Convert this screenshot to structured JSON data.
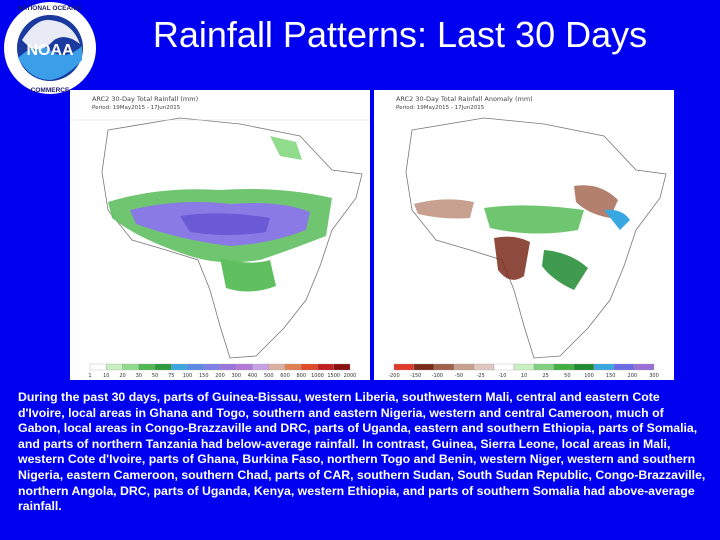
{
  "slide": {
    "title": "Rainfall Patterns: Last 30 Days",
    "logo_text": "NOAA",
    "caption": "During the past 30 days, parts of Guinea-Bissau, western Liberia, southwestern Mali, central and eastern Cote d'Ivoire, local areas in Ghana  and Togo, southern and eastern Nigeria, western and central Cameroon, much of Gabon, local areas in Congo-Brazzaville and DRC, parts of Uganda, eastern and southern Ethiopia, parts of Somalia, and parts of northern Tanzania had below-average rainfall. In contrast, Guinea, Sierra Leone, local areas in Mali, western Cote d'Ivoire, parts of Ghana, Burkina Faso, northern Togo and Benin, western Niger, western and southern Nigeria, eastern Cameroon, southern Chad, parts of CAR, southern Sudan, South Sudan Republic, Congo-Brazzaville, northern Angola, DRC, parts of Uganda, Kenya, western Ethiopia, and parts of southern Somalia had above-average rainfall."
  },
  "maps": {
    "left": {
      "title": "ARC2 30-Day Total Rainfall (mm)",
      "period": "Period: 19May2015 - 17Jun2015",
      "legend": [
        "1",
        "10",
        "20",
        "30",
        "50",
        "75",
        "100",
        "150",
        "200",
        "300",
        "400",
        "500",
        "600",
        "800",
        "1000",
        "1500",
        "2000"
      ],
      "legend_colors": [
        "#ffffff",
        "#c8f0c0",
        "#90dc8c",
        "#50b850",
        "#2a9a3a",
        "#3aa8e0",
        "#5a8ae6",
        "#7f7fe8",
        "#9a76dc",
        "#b27ad6",
        "#c7a0e6",
        "#dcb0a0",
        "#e08050",
        "#e04a2a",
        "#c22020",
        "#8a1010"
      ]
    },
    "right": {
      "title": "ARC2 30-Day Total Rainfall Anomaly (mm)",
      "period": "Period: 19May2015 - 17Jun2015",
      "legend": [
        "-200",
        "-150",
        "-100",
        "-50",
        "-25",
        "-10",
        "10",
        "25",
        "50",
        "100",
        "150",
        "200",
        "300"
      ],
      "legend_colors": [
        "#e03a2a",
        "#7a2a1a",
        "#a0604a",
        "#c8a090",
        "#e0c8c0",
        "#ffffff",
        "#c8f0c0",
        "#80d080",
        "#40b040",
        "#208a30",
        "#3aa8e0",
        "#6a6ae6",
        "#9a70d6"
      ]
    }
  }
}
